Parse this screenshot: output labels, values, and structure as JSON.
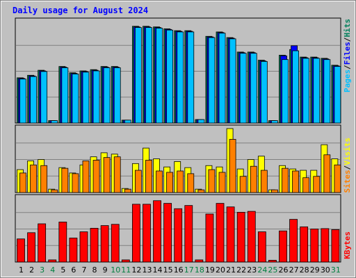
{
  "title": "Daily usage for August 2024",
  "panels": {
    "top": {
      "ymax_label": "16262",
      "legend": {
        "pages": "Pages",
        "files": "Files",
        "hits": "Hits",
        "sep": "/"
      }
    },
    "middle": {
      "ymax_label": "480",
      "legend": {
        "sites": "Sites",
        "visits": "Visits",
        "sep": "/"
      }
    },
    "bottom": {
      "ymax_label": "363544",
      "legend": {
        "kbytes": "KBytes"
      }
    }
  },
  "colors": {
    "background": "#c0c0c0",
    "plot_bg": "#c0c0c0",
    "grid": "#808080",
    "hits": "#00805c",
    "files": "#0000ff",
    "pages": "#00c0ff",
    "visits": "#ffff00",
    "sites": "#ff8000",
    "kbytes": "#ff0000",
    "title": "#0000ff",
    "weekend_label": "#008040"
  },
  "chart_data": [
    {
      "type": "bar",
      "title": "Daily usage for August 2024",
      "categories": [
        "1",
        "2",
        "3",
        "4",
        "5",
        "6",
        "7",
        "8",
        "9",
        "10",
        "11",
        "12",
        "13",
        "14",
        "15",
        "16",
        "17",
        "18",
        "19",
        "20",
        "21",
        "22",
        "23",
        "24",
        "25",
        "26",
        "27",
        "28",
        "29",
        "30",
        "31"
      ],
      "weekend_days": [
        "3",
        "4",
        "10",
        "11",
        "17",
        "18",
        "24",
        "25",
        "31"
      ],
      "ymax": 16262,
      "series": [
        {
          "name": "Hits",
          "values": [
            7200,
            7600,
            8400,
            380,
            9000,
            8000,
            8300,
            8500,
            9000,
            9000,
            460,
            15400,
            15400,
            15300,
            15000,
            14700,
            14700,
            550,
            13800,
            14500,
            13600,
            11300,
            11300,
            10000,
            380,
            10800,
            11700,
            10500,
            10500,
            10300,
            9200
          ]
        },
        {
          "name": "Files",
          "values": [
            7100,
            7500,
            8300,
            380,
            8900,
            7900,
            8200,
            8400,
            8900,
            8900,
            460,
            15300,
            15300,
            15200,
            14900,
            14600,
            14600,
            550,
            13700,
            14400,
            13500,
            11200,
            11200,
            9900,
            380,
            10700,
            12300,
            10400,
            10400,
            10200,
            9100
          ]
        },
        {
          "name": "Pages",
          "values": [
            7000,
            7400,
            8200,
            380,
            8800,
            7800,
            8100,
            8300,
            8800,
            8800,
            460,
            15200,
            15200,
            15100,
            14800,
            14500,
            14500,
            550,
            13600,
            14300,
            13400,
            11100,
            11100,
            9800,
            380,
            10100,
            11500,
            10300,
            10300,
            10100,
            9000
          ]
        }
      ]
    },
    {
      "type": "bar",
      "categories": [
        "1",
        "2",
        "3",
        "4",
        "5",
        "6",
        "7",
        "8",
        "9",
        "10",
        "11",
        "12",
        "13",
        "14",
        "15",
        "16",
        "17",
        "18",
        "19",
        "20",
        "21",
        "22",
        "23",
        "24",
        "25",
        "26",
        "27",
        "28",
        "29",
        "30",
        "31"
      ],
      "ymax": 480,
      "series": [
        {
          "name": "Visits",
          "values": [
            170,
            235,
            245,
            25,
            185,
            145,
            205,
            265,
            295,
            285,
            30,
            215,
            330,
            250,
            190,
            230,
            185,
            25,
            200,
            190,
            475,
            175,
            245,
            270,
            20,
            200,
            175,
            165,
            165,
            355,
            250
          ]
        },
        {
          "name": "Sites",
          "values": [
            145,
            205,
            200,
            20,
            180,
            140,
            235,
            240,
            260,
            265,
            25,
            165,
            240,
            160,
            150,
            160,
            140,
            20,
            170,
            150,
            395,
            120,
            195,
            165,
            20,
            180,
            160,
            110,
            120,
            280,
            205
          ]
        }
      ]
    },
    {
      "type": "bar",
      "categories": [
        "1",
        "2",
        "3",
        "4",
        "5",
        "6",
        "7",
        "8",
        "9",
        "10",
        "11",
        "12",
        "13",
        "14",
        "15",
        "16",
        "17",
        "18",
        "19",
        "20",
        "21",
        "22",
        "23",
        "24",
        "25",
        "26",
        "27",
        "28",
        "29",
        "30",
        "31"
      ],
      "ymax": 363544,
      "series": [
        {
          "name": "KBytes",
          "values": [
            130000,
            165000,
            215000,
            12000,
            225000,
            135000,
            170000,
            190000,
            205000,
            212000,
            12000,
            325000,
            325000,
            345000,
            330000,
            300000,
            318000,
            12000,
            270000,
            330000,
            310000,
            280000,
            285000,
            170000,
            10000,
            175000,
            240000,
            198000,
            186000,
            188000,
            182000
          ]
        }
      ]
    }
  ]
}
